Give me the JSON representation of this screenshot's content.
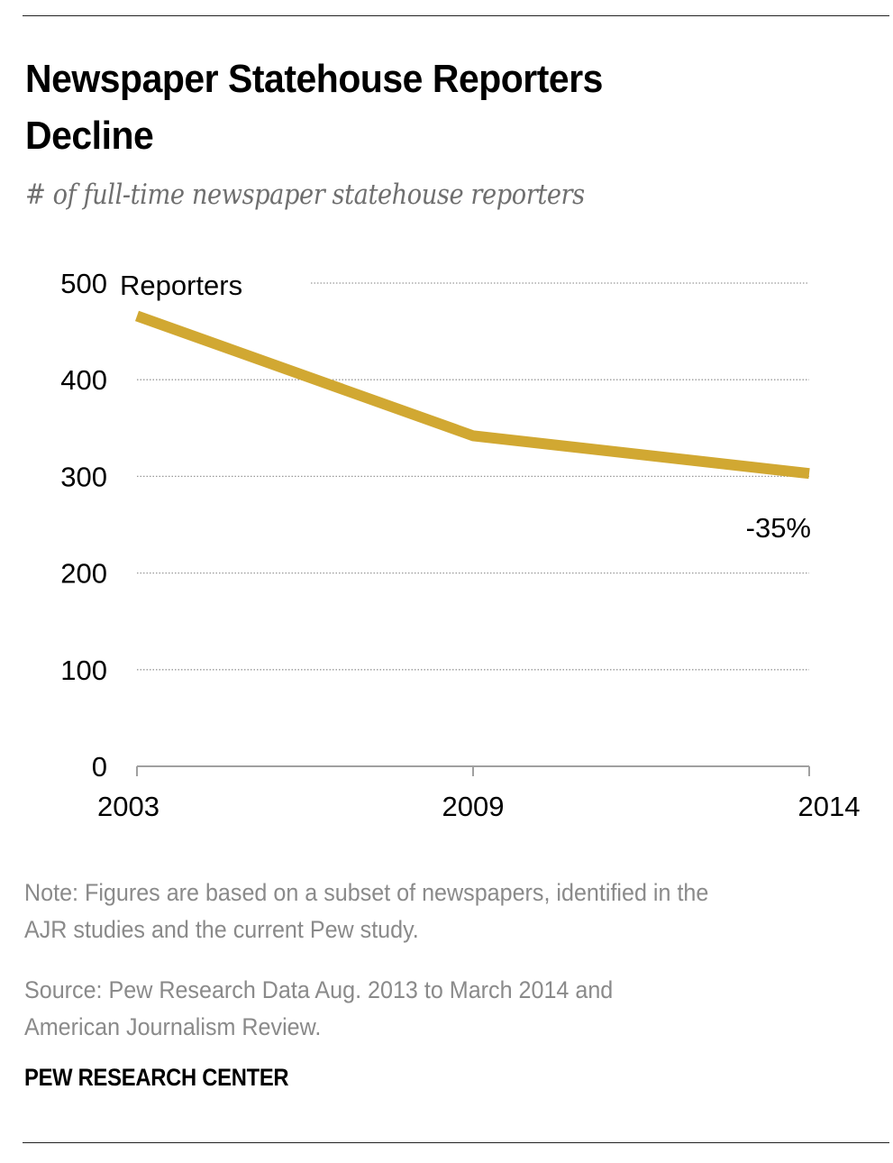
{
  "header": {
    "title_line1": "Newspaper Statehouse Reporters",
    "title_line2": "Decline",
    "subtitle": "# of full-time newspaper statehouse reporters"
  },
  "chart_data": {
    "type": "line",
    "title": "Newspaper Statehouse Reporters Decline",
    "subtitle": "# of full-time newspaper statehouse reporters",
    "xlabel": "",
    "ylabel": "Reporters",
    "x": [
      "2003",
      "2009",
      "2014"
    ],
    "series": [
      {
        "name": "Reporters",
        "values": [
          466,
          342,
          303
        ],
        "color": "#d1a832"
      }
    ],
    "ylim": [
      0,
      500
    ],
    "yticks": [
      0,
      100,
      200,
      300,
      400,
      500
    ],
    "ytick_labels": [
      "0",
      "100",
      "200",
      "300",
      "400",
      "500"
    ],
    "y_unit_label": "Reporters",
    "grid": "horizontal-dotted",
    "annotations": [
      {
        "text": "-35%",
        "x": "2014",
        "position": "below-line-end"
      }
    ],
    "legend": "none"
  },
  "footer": {
    "note_line1": "Note: Figures are based on a subset of newspapers, identified in the",
    "note_line2": "AJR studies and the current Pew study.",
    "source_line1": "Source: Pew Research Data Aug. 2013 to March 2014 and",
    "source_line2": "American Journalism Review.",
    "brand": "PEW RESEARCH CENTER"
  }
}
